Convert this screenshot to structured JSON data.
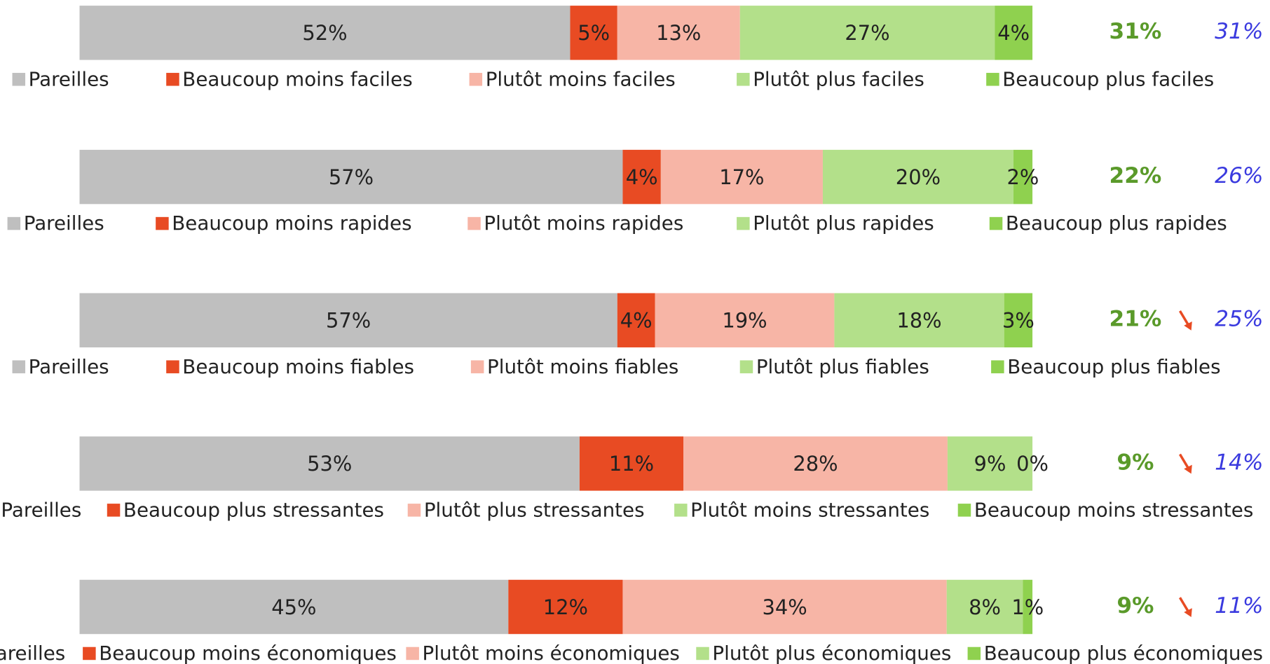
{
  "chart_data": [
    {
      "type": "stacked_bar",
      "series": [
        {
          "name": "Pareilles",
          "color": "#bfbfbf",
          "values": [
            52
          ],
          "value_labels": [
            "52%"
          ]
        },
        {
          "name": "Beaucoup moins faciles",
          "color": "#e84b23",
          "values": [
            5
          ],
          "value_labels": [
            "5%"
          ]
        },
        {
          "name": "Plutôt moins faciles",
          "color": "#f7b5a6",
          "values": [
            13
          ],
          "value_labels": [
            "13%"
          ]
        },
        {
          "name": "Plutôt plus faciles",
          "color": "#b3e08a",
          "values": [
            27
          ],
          "value_labels": [
            "27%"
          ]
        },
        {
          "name": "Beaucoup plus faciles",
          "color": "#8fd14f",
          "values": [
            4
          ],
          "value_labels": [
            "4%"
          ]
        }
      ],
      "total": {
        "value": 31,
        "label": "31%"
      },
      "previous": {
        "value": 31,
        "label": "31%"
      }
    },
    {
      "type": "stacked_bar",
      "series": [
        {
          "name": "Pareilles",
          "color": "#bfbfbf",
          "values": [
            57
          ],
          "value_labels": [
            "57%"
          ]
        },
        {
          "name": "Beaucoup moins rapides",
          "color": "#e84b23",
          "values": [
            4
          ],
          "value_labels": [
            "4%"
          ]
        },
        {
          "name": "Plutôt moins rapides",
          "color": "#f7b5a6",
          "values": [
            17
          ],
          "value_labels": [
            "17%"
          ]
        },
        {
          "name": "Plutôt plus rapides",
          "color": "#b3e08a",
          "values": [
            20
          ],
          "value_labels": [
            "20%"
          ]
        },
        {
          "name": "Beaucoup plus rapides",
          "color": "#8fd14f",
          "values": [
            2
          ],
          "value_labels": [
            "2%"
          ]
        }
      ],
      "total": {
        "value": 22,
        "label": "22%"
      },
      "previous": {
        "value": 26,
        "label": "26%"
      }
    },
    {
      "type": "stacked_bar",
      "series": [
        {
          "name": "Pareilles",
          "color": "#bfbfbf",
          "values": [
            57
          ],
          "value_labels": [
            "57%"
          ]
        },
        {
          "name": "Beaucoup moins fiables",
          "color": "#e84b23",
          "values": [
            4
          ],
          "value_labels": [
            "4%"
          ]
        },
        {
          "name": "Plutôt moins fiables",
          "color": "#f7b5a6",
          "values": [
            19
          ],
          "value_labels": [
            "19%"
          ]
        },
        {
          "name": "Plutôt plus fiables",
          "color": "#b3e08a",
          "values": [
            18
          ],
          "value_labels": [
            "18%"
          ]
        },
        {
          "name": "Beaucoup plus fiables",
          "color": "#8fd14f",
          "values": [
            3
          ],
          "value_labels": [
            "3%"
          ]
        }
      ],
      "total": {
        "value": 21,
        "label": "21%"
      },
      "previous": {
        "value": 25,
        "label": "25%"
      },
      "trend": "down"
    },
    {
      "type": "stacked_bar",
      "series": [
        {
          "name": "Pareilles",
          "color": "#bfbfbf",
          "values": [
            53
          ],
          "value_labels": [
            "53%"
          ]
        },
        {
          "name": "Beaucoup plus stressantes",
          "color": "#e84b23",
          "values": [
            11
          ],
          "value_labels": [
            "11%"
          ]
        },
        {
          "name": "Plutôt plus stressantes",
          "color": "#f7b5a6",
          "values": [
            28
          ],
          "value_labels": [
            "28%"
          ]
        },
        {
          "name": "Plutôt moins stressantes",
          "color": "#b3e08a",
          "values": [
            9
          ],
          "value_labels": [
            "9%"
          ]
        },
        {
          "name": "Beaucoup moins stressantes",
          "color": "#8fd14f",
          "values": [
            0
          ],
          "value_labels": [
            "0%"
          ]
        }
      ],
      "total": {
        "value": 9,
        "label": "9%"
      },
      "previous": {
        "value": 14,
        "label": "14%"
      },
      "trend": "down"
    },
    {
      "type": "stacked_bar",
      "series": [
        {
          "name": "Pareilles",
          "color": "#bfbfbf",
          "values": [
            45
          ],
          "value_labels": [
            "45%"
          ]
        },
        {
          "name": "Beaucoup moins économiques",
          "color": "#e84b23",
          "values": [
            12
          ],
          "value_labels": [
            "12%"
          ]
        },
        {
          "name": "Plutôt moins économiques",
          "color": "#f7b5a6",
          "values": [
            34
          ],
          "value_labels": [
            "34%"
          ]
        },
        {
          "name": "Plutôt plus économiques",
          "color": "#b3e08a",
          "values": [
            8
          ],
          "value_labels": [
            "8%"
          ]
        },
        {
          "name": "Beaucoup plus économiques",
          "color": "#8fd14f",
          "values": [
            1
          ],
          "value_labels": [
            "1%"
          ]
        }
      ],
      "total": {
        "value": 9,
        "label": "9%"
      },
      "previous": {
        "value": 11,
        "label": "11%"
      },
      "trend": "down"
    }
  ]
}
